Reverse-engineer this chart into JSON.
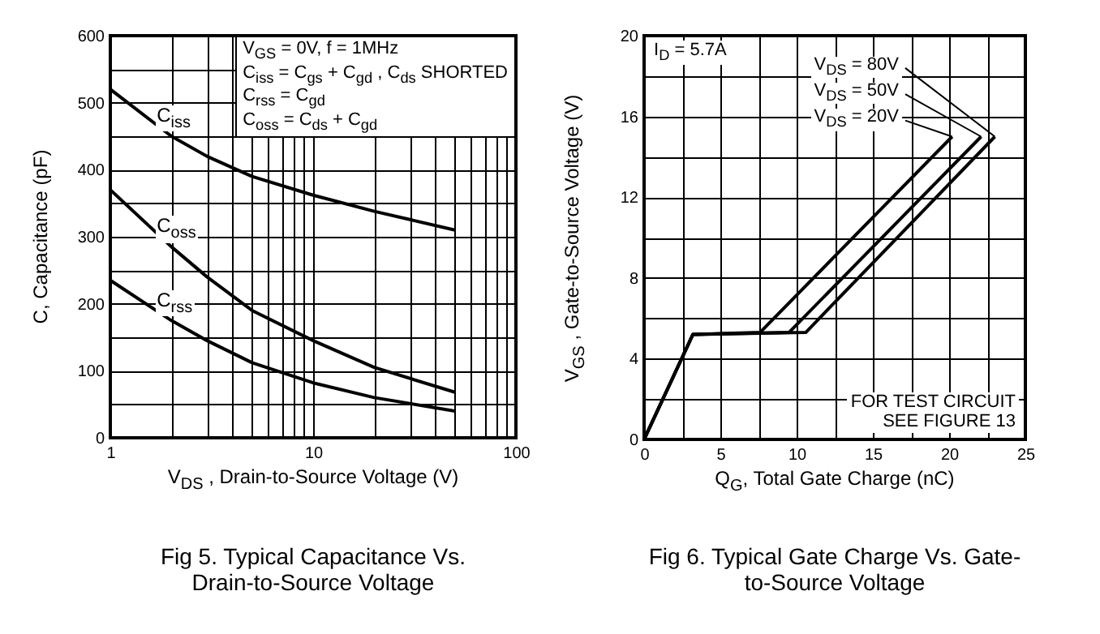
{
  "chart_data": [
    {
      "type": "line",
      "title": "Fig 5. Typical Capacitance Vs. Drain-to-Source Voltage",
      "xlabel": "V$_{DS}$ , Drain-to-Source Voltage (V)",
      "ylabel": "C, Capacitance (pF)",
      "log": "x",
      "grid": true,
      "legend": false,
      "marker": "none",
      "line_style": "solid",
      "annotations": [
        "V$_{GS}$ = 0V,        f = 1MHz\nC$_{iss}$ = C$_{gs}$ + C$_{gd}$ , C$_{ds}$ SHORTED\nC$_{rss}$ = C$_{gd}$\nC$_{oss}$ = C$_{ds}$ + C$_{gd}$"
      ],
      "xlim": [
        1,
        100
      ],
      "xticks": [
        1,
        {
          "value": 2,
          "label": null
        },
        {
          "value": 3,
          "label": null
        },
        {
          "value": 4,
          "label": null
        },
        {
          "value": 5,
          "label": null
        },
        {
          "value": 6,
          "label": null
        },
        {
          "value": 7,
          "label": null
        },
        {
          "value": 8,
          "label": null
        },
        {
          "value": 9,
          "label": null
        },
        10,
        {
          "value": 20,
          "label": null
        },
        {
          "value": 30,
          "label": null
        },
        {
          "value": 40,
          "label": null
        },
        {
          "value": 50,
          "label": null
        },
        {
          "value": 60,
          "label": null
        },
        {
          "value": 70,
          "label": null
        },
        {
          "value": 80,
          "label": null
        },
        {
          "value": 90,
          "label": null
        },
        100
      ],
      "ylim": [
        0,
        600
      ],
      "yticks": [
        0,
        {
          "value": 50,
          "label": null
        },
        100,
        {
          "value": 150,
          "label": null
        },
        200,
        {
          "value": 250,
          "label": null
        },
        300,
        {
          "value": 350,
          "label": null
        },
        400,
        {
          "value": 450,
          "label": null
        },
        500,
        {
          "value": 550,
          "label": null
        },
        600
      ],
      "x": [
        1,
        2,
        3,
        5,
        10,
        20,
        50
      ],
      "series": [
        {
          "name": "C$_{iss}$",
          "color": "#000000",
          "values": [
            520,
            450,
            420,
            390,
            362,
            338,
            310
          ]
        },
        {
          "name": "C$_{oss}$",
          "color": "#000000",
          "values": [
            370,
            285,
            240,
            190,
            145,
            105,
            68
          ]
        },
        {
          "name": "C$_{rss}$",
          "color": "#000000",
          "values": [
            235,
            175,
            145,
            112,
            82,
            60,
            40
          ]
        }
      ]
    },
    {
      "type": "line",
      "title": "Fig 6. Typical Gate Charge Vs. Gate-to-Source Voltage",
      "xlabel": "Q$_{G}$, Total Gate Charge (nC)",
      "ylabel": "V$_{GS}$ , Gate-to-Source Voltage (V)",
      "grid": true,
      "legend": "top right",
      "marker": "none",
      "line_style": "solid",
      "annotations": [
        "I$_{D}$ = 5.7A",
        "FOR TEST CIRCUIT\nSEE FIGURE 13"
      ],
      "xlim": [
        0,
        25
      ],
      "xticks": [
        0,
        {
          "value": 2.5,
          "label": null
        },
        5,
        {
          "value": 7.5,
          "label": null
        },
        10,
        {
          "value": 12.5,
          "label": null
        },
        15,
        {
          "value": 17.5,
          "label": null
        },
        20,
        {
          "value": 22.5,
          "label": null
        },
        25
      ],
      "ylim": [
        0,
        20
      ],
      "yticks": [
        0,
        {
          "value": 2,
          "label": null
        },
        4,
        {
          "value": 6,
          "label": null
        },
        8,
        {
          "value": 10,
          "label": null
        },
        12,
        {
          "value": 14,
          "label": null
        },
        16,
        {
          "value": 18,
          "label": null
        },
        20
      ],
      "series": [
        {
          "name": "V$_{DS}$ = 20V",
          "color": "#000000",
          "x": [
            0,
            3.2,
            7.6,
            20.2
          ],
          "values": [
            0,
            5.2,
            5.3,
            15
          ]
        },
        {
          "name": "V$_{DS}$ = 50V",
          "color": "#000000",
          "x": [
            0,
            3.2,
            9.5,
            22.1
          ],
          "values": [
            0,
            5.2,
            5.3,
            15
          ]
        },
        {
          "name": "V$_{DS}$ = 80V",
          "color": "#000000",
          "x": [
            0,
            3.2,
            10.6,
            23
          ],
          "values": [
            0,
            5.2,
            5.3,
            15
          ]
        }
      ]
    }
  ]
}
